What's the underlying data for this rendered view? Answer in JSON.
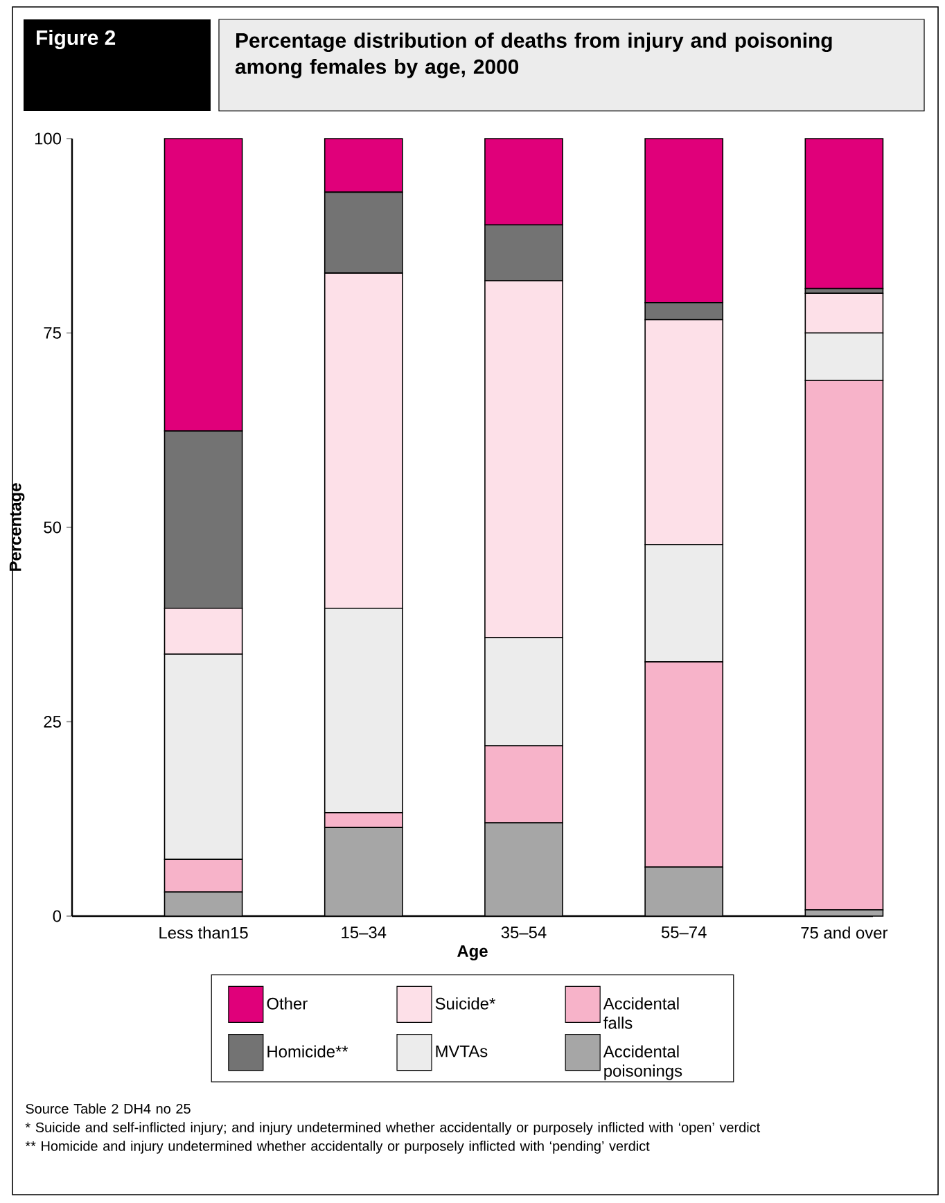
{
  "chart_data": {
    "type": "bar",
    "stacked": true,
    "title": "Percentage distribution of deaths from injury and poisoning among females by age, 2000",
    "xlabel": "Age",
    "ylabel": "Percentage",
    "categories": [
      "Less than15",
      "15–34",
      "35–54",
      "55–74",
      "75 and over"
    ],
    "series": [
      {
        "name": "Accidental poisonings",
        "color": "#a6a6a6",
        "values": [
          3.1,
          11.4,
          12.0,
          6.3,
          0.8
        ]
      },
      {
        "name": "Accidental falls",
        "color": "#f7b3c9",
        "values": [
          4.2,
          1.9,
          9.9,
          26.4,
          68.1
        ]
      },
      {
        "name": "MVTAs",
        "color": "#ececec",
        "values": [
          26.4,
          26.3,
          13.9,
          15.1,
          6.1
        ]
      },
      {
        "name": "Suicide*",
        "color": "#fde0e8",
        "values": [
          5.9,
          43.1,
          45.9,
          28.9,
          5.1
        ]
      },
      {
        "name": "Homicide**",
        "color": "#737373",
        "values": [
          22.8,
          10.4,
          7.2,
          2.2,
          0.6
        ]
      },
      {
        "name": "Other",
        "color": "#e0007a",
        "values": [
          37.6,
          6.9,
          11.1,
          21.1,
          19.3
        ]
      }
    ],
    "ylim": [
      0,
      100
    ],
    "yticks": [
      0,
      25,
      50,
      75,
      100
    ],
    "grid": false,
    "legend": "bottom",
    "annotations": [
      "Figure 2",
      "Source Table 2 DH4 no 25",
      "*    Suicide and self-inflicted injury; and injury undetermined whether accidentally or purposely inflicted with ‘open’ verdict",
      "**    Homicide and injury undetermined whether accidentally or purposely inflicted with ‘pending’ verdict"
    ]
  }
}
